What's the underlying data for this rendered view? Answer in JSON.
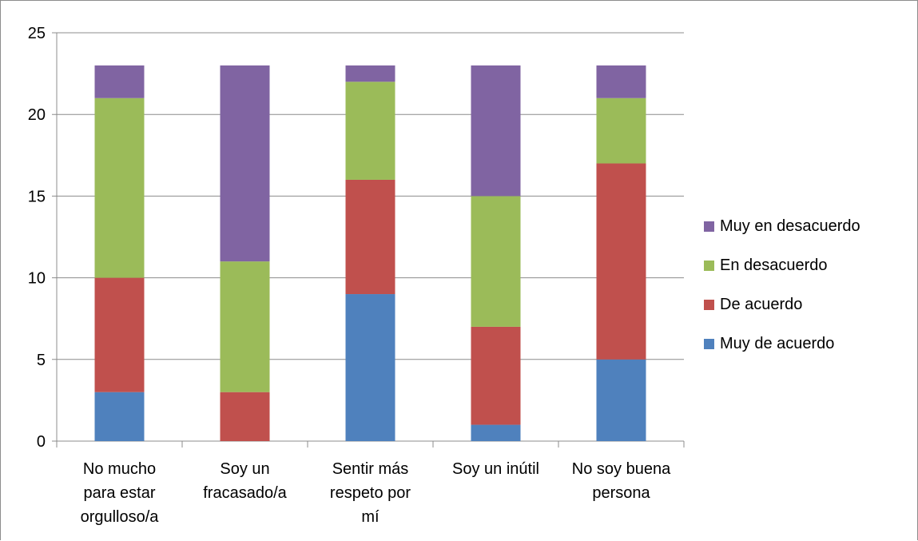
{
  "chart_data": {
    "type": "bar",
    "stacked": true,
    "title": "",
    "xlabel": "",
    "ylabel": "",
    "ylim": [
      0,
      25
    ],
    "yticks": [
      0,
      5,
      10,
      15,
      20,
      25
    ],
    "grid": true,
    "legend_position": "right",
    "categories": [
      [
        "No mucho",
        "para estar",
        "orgulloso/a"
      ],
      [
        "Soy un",
        "fracasado/a"
      ],
      [
        "Sentir más",
        "respeto por",
        "mí"
      ],
      [
        "Soy un inútil"
      ],
      [
        "No soy buena",
        "persona"
      ]
    ],
    "series": [
      {
        "name": "Muy de acuerdo",
        "color": "#4f81bd",
        "values": [
          3,
          0,
          9,
          1,
          5
        ]
      },
      {
        "name": "De acuerdo",
        "color": "#c0504d",
        "values": [
          7,
          3,
          7,
          6,
          12
        ]
      },
      {
        "name": "En desacuerdo",
        "color": "#9bbb59",
        "values": [
          11,
          8,
          6,
          8,
          4
        ]
      },
      {
        "name": "Muy en desacuerdo",
        "color": "#8064a2",
        "values": [
          2,
          12,
          1,
          8,
          2
        ]
      }
    ]
  }
}
